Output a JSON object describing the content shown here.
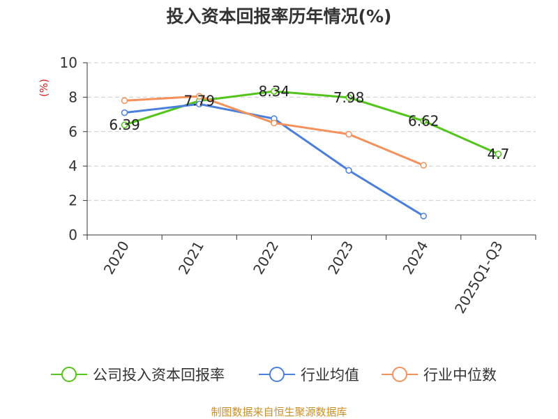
{
  "chart_data": {
    "type": "line",
    "title": "投入资本回报率历年情况(%)",
    "ylabel": "(%)",
    "xlabel": "",
    "ylim": [
      0,
      10
    ],
    "yticks": [
      0,
      2,
      4,
      6,
      8,
      10
    ],
    "categories": [
      "2020",
      "2021",
      "2022",
      "2023",
      "2024",
      "2025Q1-Q3"
    ],
    "grid": true,
    "legend_position": "bottom",
    "series": [
      {
        "name": "公司投入资本回报率",
        "color": "#52c41a",
        "values": [
          6.39,
          7.79,
          8.34,
          7.98,
          6.62,
          4.7
        ],
        "labels": [
          "6.39",
          "7.79",
          "8.34",
          "7.98",
          "6.62",
          "4.7"
        ]
      },
      {
        "name": "行业均值",
        "color": "#4a7fdc",
        "values": [
          7.1,
          7.6,
          6.75,
          3.75,
          1.1,
          null
        ]
      },
      {
        "name": "行业中位数",
        "color": "#f4915a",
        "values": [
          7.8,
          8.05,
          6.5,
          5.85,
          4.05,
          null
        ]
      }
    ]
  },
  "source_text": "制图数据来自恒生聚源数据库",
  "colors": {
    "ylabel": "#e02020",
    "source": "#c8902a",
    "grid": "#cccccc",
    "axis": "#333333"
  }
}
